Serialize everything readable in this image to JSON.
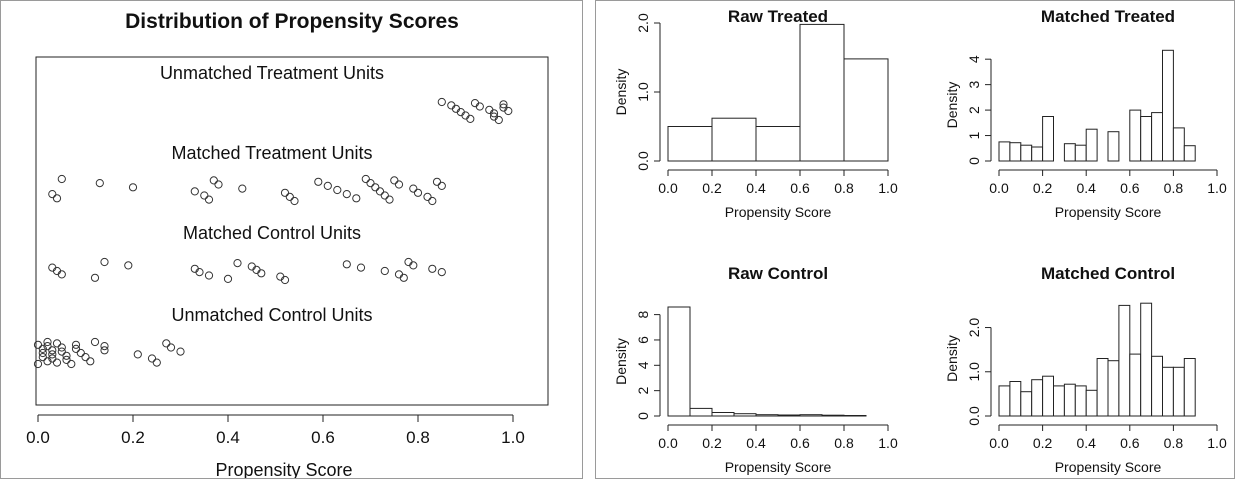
{
  "chart_data": [
    {
      "id": "jitter",
      "type": "scatter",
      "title": "Distribution of Propensity Scores",
      "xlabel": "Propensity Score",
      "xlim": [
        0,
        1
      ],
      "xticks": [
        "0.0",
        "0.2",
        "0.4",
        "0.6",
        "0.8",
        "1.0"
      ],
      "groups": [
        {
          "name": "Unmatched Treatment Units",
          "values": [
            0.85,
            0.87,
            0.88,
            0.89,
            0.9,
            0.91,
            0.92,
            0.93,
            0.95,
            0.96,
            0.96,
            0.97,
            0.98,
            0.98,
            0.99
          ]
        },
        {
          "name": "Matched Treatment Units",
          "values": [
            0.03,
            0.04,
            0.05,
            0.13,
            0.2,
            0.33,
            0.35,
            0.36,
            0.37,
            0.38,
            0.43,
            0.52,
            0.53,
            0.54,
            0.59,
            0.61,
            0.63,
            0.65,
            0.67,
            0.69,
            0.7,
            0.71,
            0.72,
            0.73,
            0.74,
            0.75,
            0.76,
            0.79,
            0.8,
            0.82,
            0.83,
            0.84,
            0.85
          ]
        },
        {
          "name": "Matched Control Units",
          "values": [
            0.03,
            0.04,
            0.05,
            0.12,
            0.14,
            0.19,
            0.33,
            0.34,
            0.36,
            0.4,
            0.42,
            0.45,
            0.46,
            0.47,
            0.51,
            0.52,
            0.65,
            0.68,
            0.73,
            0.76,
            0.77,
            0.78,
            0.79,
            0.83,
            0.85
          ]
        },
        {
          "name": "Unmatched Control Units",
          "values": [
            0.0,
            0.0,
            0.01,
            0.01,
            0.01,
            0.02,
            0.02,
            0.02,
            0.03,
            0.03,
            0.03,
            0.04,
            0.04,
            0.05,
            0.05,
            0.06,
            0.06,
            0.07,
            0.08,
            0.08,
            0.09,
            0.1,
            0.11,
            0.12,
            0.14,
            0.14,
            0.21,
            0.24,
            0.25,
            0.27,
            0.28,
            0.3
          ]
        }
      ]
    },
    {
      "id": "raw-treated",
      "type": "bar",
      "title": "Raw Treated",
      "xlabel": "Propensity Score",
      "ylabel": "Density",
      "xlim": [
        0,
        1
      ],
      "ylim": [
        0,
        2.0
      ],
      "xticks": [
        "0.0",
        "0.2",
        "0.4",
        "0.6",
        "0.8",
        "1.0"
      ],
      "yticks": [
        "0.0",
        "1.0",
        "2.0"
      ],
      "bin_width": 0.2,
      "bin_starts": [
        0,
        0.2,
        0.4,
        0.6,
        0.8
      ],
      "values": [
        0.5,
        0.62,
        0.5,
        1.98,
        1.48
      ]
    },
    {
      "id": "matched-treated",
      "type": "bar",
      "title": "Matched Treated",
      "xlabel": "Propensity Score",
      "ylabel": "Density",
      "xlim": [
        0,
        1
      ],
      "ylim": [
        0,
        4.4
      ],
      "xticks": [
        "0.0",
        "0.2",
        "0.4",
        "0.6",
        "0.8",
        "1.0"
      ],
      "yticks": [
        "0",
        "1",
        "2",
        "3",
        "4"
      ],
      "bin_width": 0.05,
      "bin_starts": [
        0,
        0.05,
        0.1,
        0.15,
        0.2,
        0.25,
        0.3,
        0.35,
        0.4,
        0.45,
        0.5,
        0.55,
        0.6,
        0.65,
        0.7,
        0.75,
        0.8,
        0.85
      ],
      "values": [
        0.75,
        0.72,
        0.62,
        0.55,
        1.75,
        0,
        0.68,
        0.62,
        1.25,
        0,
        1.15,
        0,
        2.0,
        1.75,
        1.9,
        4.35,
        1.3,
        0.6
      ]
    },
    {
      "id": "raw-control",
      "type": "bar",
      "title": "Raw Control",
      "xlabel": "Propensity Score",
      "ylabel": "Density",
      "xlim": [
        0,
        1
      ],
      "ylim": [
        0,
        8.6
      ],
      "xticks": [
        "0.0",
        "0.2",
        "0.4",
        "0.6",
        "0.8",
        "1.0"
      ],
      "yticks": [
        "0",
        "2",
        "4",
        "6",
        "8"
      ],
      "bin_width": 0.1,
      "bin_starts": [
        0,
        0.1,
        0.2,
        0.3,
        0.4,
        0.5,
        0.6,
        0.7,
        0.8
      ],
      "values": [
        8.6,
        0.6,
        0.28,
        0.18,
        0.1,
        0.08,
        0.1,
        0.06,
        0.04
      ]
    },
    {
      "id": "matched-control",
      "type": "bar",
      "title": "Matched Control",
      "xlabel": "Propensity Score",
      "ylabel": "Density",
      "xlim": [
        0,
        1
      ],
      "ylim": [
        0,
        2.6
      ],
      "xticks": [
        "0.0",
        "0.2",
        "0.4",
        "0.6",
        "0.8",
        "1.0"
      ],
      "yticks": [
        "0.0",
        "1.0",
        "2.0"
      ],
      "bin_width": 0.05,
      "bin_starts": [
        0,
        0.05,
        0.1,
        0.15,
        0.2,
        0.25,
        0.3,
        0.35,
        0.4,
        0.45,
        0.5,
        0.55,
        0.6,
        0.65,
        0.7,
        0.75,
        0.8,
        0.85
      ],
      "values": [
        0.68,
        0.78,
        0.55,
        0.82,
        0.9,
        0.68,
        0.72,
        0.68,
        0.58,
        1.3,
        1.25,
        2.5,
        1.4,
        2.55,
        1.35,
        1.1,
        1.1,
        1.3
      ]
    }
  ]
}
